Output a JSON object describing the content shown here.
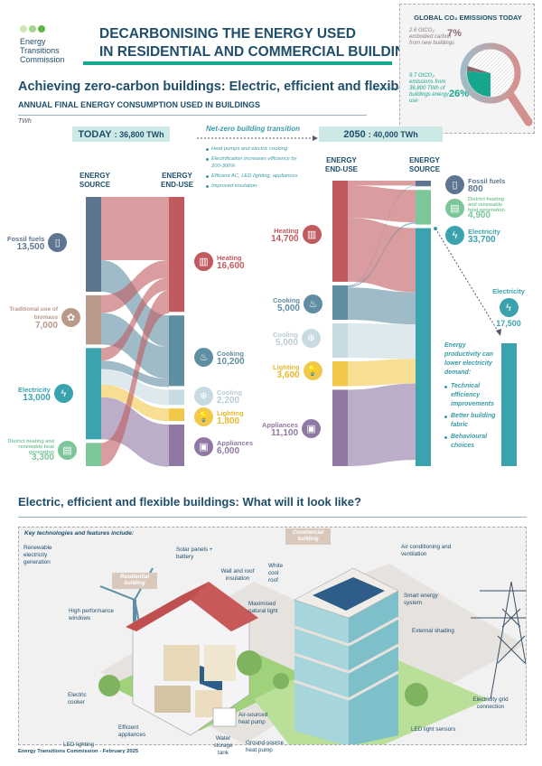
{
  "header": {
    "org": "Energy Transitions Commission",
    "title_line1": "DECARBONISING THE ENERGY USED",
    "title_line2": "IN RESIDENTIAL AND COMMERCIAL BUILDINGS",
    "subtitle": "Achieving zero-carbon buildings: Electric, efficient and flexible",
    "section_label": "ANNUAL FINAL ENERGY CONSUMPTION USED IN BUILDINGS",
    "unit": "TWh"
  },
  "co2": {
    "title": "GLOBAL CO₂ EMISSIONS TODAY",
    "embodied_text": "2.6 GtCO₂ embodied carbon from new buildings",
    "embodied_pct": "7%",
    "energy_text": "9.7 GtCO₂ emissions from 36,800 TWh of buildings energy use",
    "energy_pct": "26%",
    "colors": {
      "embodied": "#8a6a72",
      "energy": "#16a78e"
    }
  },
  "today": {
    "label": "TODAY",
    "total": ": 36,800 TWh",
    "source_head": "ENERGY SOURCE",
    "enduse_head": "ENERGY END-USE"
  },
  "future": {
    "label": "2050",
    "total": ": 40,000 TWh",
    "source_head": "ENERGY SOURCE",
    "enduse_head": "ENERGY END-USE"
  },
  "transition": {
    "title": "Net-zero building transition",
    "bullets": [
      "Heat pumps and electric cooking",
      "Electrification increases efficiency by 200-300%",
      "Efficient AC, LED lighting, appliances",
      "Improved insulation"
    ]
  },
  "productivity": {
    "title": "Energy productivity can lower electricity demand:",
    "bullets": [
      "Technical efficiency improvements",
      "Better building fabric",
      "Behavioural choices"
    ]
  },
  "chart_data": [
    {
      "type": "sankey",
      "title": "TODAY: 36,800 TWh",
      "unit": "TWh",
      "sources": [
        {
          "name": "Fossil fuels",
          "value": "13,500",
          "v": 13500,
          "color": "#5d7590",
          "icon": "gas-cylinder-icon"
        },
        {
          "name": "Traditional use of biomass",
          "value": "7,000",
          "v": 7000,
          "color": "#b8998a",
          "icon": "wood-icon"
        },
        {
          "name": "Electricity",
          "value": "13,000",
          "v": 13000,
          "color": "#3aa3ad",
          "icon": "lightning-icon"
        },
        {
          "name": "District heating and renewable heat generation",
          "value": "3,300",
          "v": 3300,
          "color": "#7cc69a",
          "icon": "heat-network-icon"
        }
      ],
      "enduses": [
        {
          "name": "Heating",
          "value": "16,600",
          "v": 16600,
          "color": "#c05a5f",
          "icon": "radiator-icon"
        },
        {
          "name": "Cooking",
          "value": "10,200",
          "v": 10200,
          "color": "#5f8ea3",
          "icon": "cooker-icon"
        },
        {
          "name": "Cooling",
          "value": "2,200",
          "v": 2200,
          "color": "#c8dae2",
          "icon": "air-conditioner-icon"
        },
        {
          "name": "Lighting",
          "value": "1,800",
          "v": 1800,
          "color": "#f2c84b",
          "icon": "lightbulb-icon"
        },
        {
          "name": "Appliances",
          "value": "6,000",
          "v": 6000,
          "color": "#9078a4",
          "icon": "appliance-icon"
        }
      ],
      "flows": [
        [
          0,
          0,
          9000
        ],
        [
          0,
          1,
          4500
        ],
        [
          1,
          0,
          2500
        ],
        [
          1,
          1,
          4500
        ],
        [
          2,
          0,
          1800
        ],
        [
          2,
          1,
          1200
        ],
        [
          2,
          2,
          2200
        ],
        [
          2,
          3,
          1800
        ],
        [
          2,
          4,
          6000
        ],
        [
          3,
          0,
          3300
        ]
      ]
    },
    {
      "type": "sankey",
      "title": "2050: 40,000 TWh",
      "unit": "TWh",
      "enduses": [
        {
          "name": "Heating",
          "value": "14,700",
          "v": 14700,
          "color": "#c05a5f"
        },
        {
          "name": "Cooking",
          "value": "5,000",
          "v": 5000,
          "color": "#5f8ea3"
        },
        {
          "name": "Cooling",
          "value": "5,000",
          "v": 5000,
          "color": "#c8dae2"
        },
        {
          "name": "Lighting",
          "value": "3,600",
          "v": 3600,
          "color": "#f2c84b"
        },
        {
          "name": "Appliances",
          "value": "11,100",
          "v": 11100,
          "color": "#9078a4"
        }
      ],
      "sources": [
        {
          "name": "Fossil fuels",
          "value": "800",
          "v": 800,
          "color": "#5d7590"
        },
        {
          "name": "District heating and renewable heat generation",
          "value": "4,900",
          "v": 4900,
          "color": "#7cc69a"
        },
        {
          "name": "Electricity",
          "value": "33,700",
          "v": 33700,
          "color": "#3aa3ad"
        }
      ],
      "flows": [
        [
          0,
          0,
          700
        ],
        [
          0,
          1,
          4700
        ],
        [
          0,
          2,
          9300
        ],
        [
          1,
          0,
          100
        ],
        [
          1,
          1,
          200
        ],
        [
          1,
          2,
          4700
        ],
        [
          2,
          2,
          5000
        ],
        [
          3,
          2,
          3600
        ],
        [
          4,
          2,
          11100
        ]
      ],
      "reduced_electricity": {
        "name": "Electricity",
        "value": "17,500",
        "v": 17500
      }
    }
  ],
  "section2": {
    "title": "Electric, efficient and flexible buildings: What will it look like?",
    "key_label": "Key technologies and features include:",
    "tags": {
      "residential": "Residential building",
      "commercial": "Commercial building"
    },
    "annotations": {
      "renewable": "Renewable electricity generation",
      "solar": "Solar panels + battery",
      "wall": "Wall and roof insulation",
      "white_roof": "White cool roof",
      "aircon": "Air conditioning and ventilation",
      "windows": "High performance windows",
      "natural_light": "Maximised natural light",
      "smart": "Smart energy system",
      "shading": "External shading",
      "cooker": "Electric cooker",
      "ashp": "Air-sourced heat pump",
      "grid": "Electricity grid connection",
      "led": "LED lighting",
      "appliances": "Efficient appliances",
      "tank": "Water storage tank",
      "gshp": "Ground-source heat pump",
      "sensors": "LED light sensors"
    }
  },
  "footer": "Energy Transitions Commission - February 2025"
}
